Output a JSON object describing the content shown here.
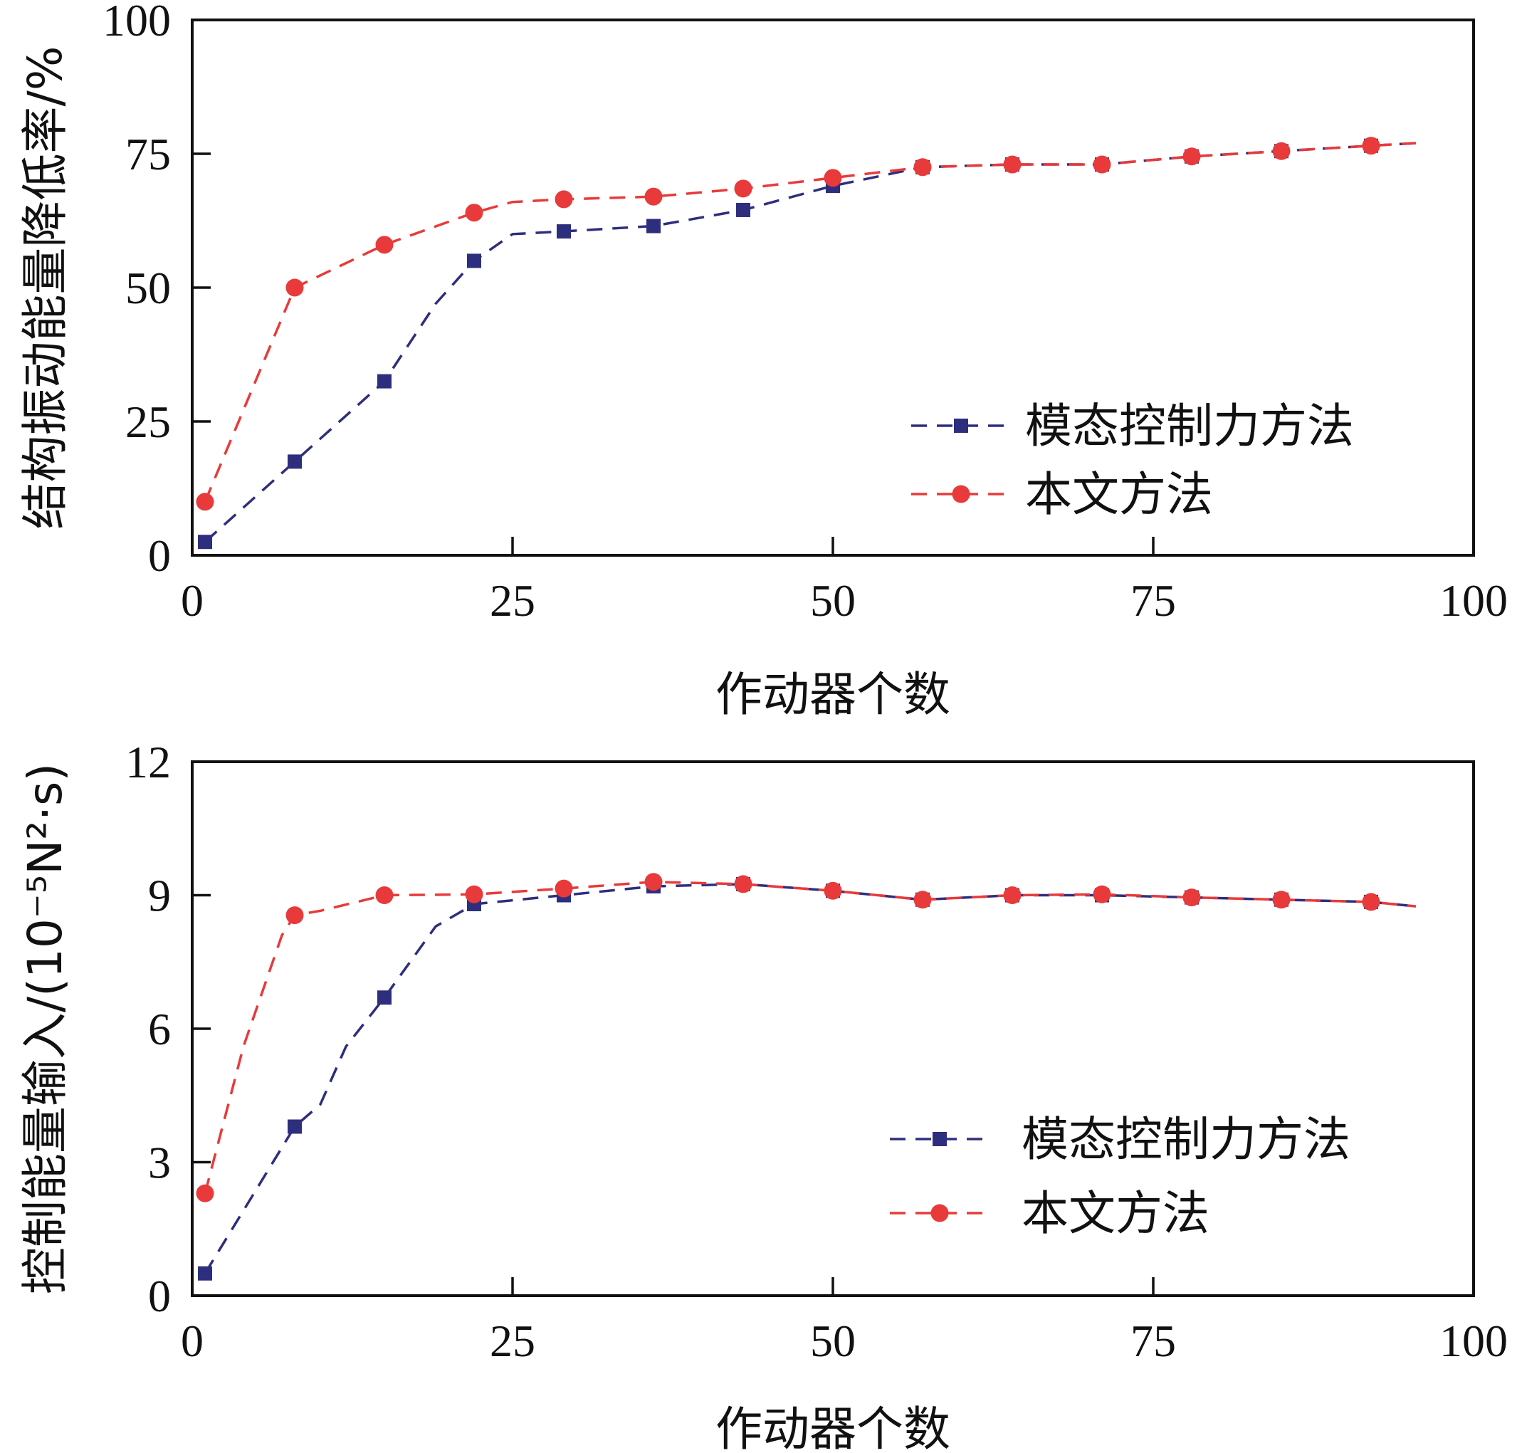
{
  "chart_data": [
    {
      "type": "line",
      "xlabel": "作动器个数",
      "ylabel": "结构振动能量降低率/%",
      "xlim": [
        0,
        100
      ],
      "ylim": [
        0,
        100
      ],
      "xticks": [
        "0",
        "25",
        "50",
        "75",
        "100"
      ],
      "yticks": [
        "0",
        "25",
        "50",
        "75",
        "100"
      ],
      "grid": false,
      "legend_position": "lower-right",
      "series": [
        {
          "name": "模态控制力方法",
          "color": "#2e2e7e",
          "marker": "square",
          "x": [
            1,
            8,
            15,
            22,
            29,
            36,
            43,
            50,
            57,
            64,
            71,
            78,
            85,
            92
          ],
          "y": [
            2.5,
            17.5,
            32.5,
            55,
            60.5,
            61.5,
            64.5,
            69,
            72.5,
            73,
            73,
            74.5,
            75.5,
            76.5
          ],
          "line_x": [
            1,
            8,
            15,
            19,
            22,
            25,
            29,
            36,
            43,
            50,
            57,
            64,
            71,
            78,
            85,
            92,
            95.5
          ],
          "line_y": [
            2.5,
            17.5,
            32.5,
            47,
            55,
            60,
            60.5,
            61.5,
            64.5,
            69,
            72.5,
            73,
            73,
            74.5,
            75.5,
            76.5,
            77
          ]
        },
        {
          "name": "本文方法",
          "color": "#e83a3a",
          "marker": "circle",
          "x": [
            1,
            8,
            15,
            22,
            29,
            36,
            43,
            50,
            57,
            64,
            71,
            78,
            85,
            92
          ],
          "y": [
            10,
            50,
            58,
            64,
            66.5,
            67,
            68.5,
            70.5,
            72.5,
            73,
            73,
            74.5,
            75.5,
            76.5
          ],
          "line_x": [
            1,
            8,
            15,
            22,
            25,
            29,
            36,
            43,
            50,
            57,
            64,
            71,
            78,
            85,
            92,
            95.5
          ],
          "line_y": [
            10,
            50,
            58,
            64,
            66,
            66.5,
            67,
            68.5,
            70.5,
            72.5,
            73,
            73,
            74.5,
            75.5,
            76.5,
            77
          ]
        }
      ]
    },
    {
      "type": "line",
      "xlabel": "作动器个数",
      "ylabel": "控制能量输入/(10⁻⁵N²·s)",
      "xlim": [
        0,
        100
      ],
      "ylim": [
        0,
        12
      ],
      "xticks": [
        "0",
        "25",
        "50",
        "75",
        "100"
      ],
      "yticks": [
        "0",
        "3",
        "6",
        "9",
        "12"
      ],
      "grid": false,
      "legend_position": "lower-right",
      "series": [
        {
          "name": "模态控制力方法",
          "color": "#2e2e7e",
          "marker": "square",
          "x": [
            1,
            8,
            15,
            22,
            29,
            36,
            43,
            50,
            57,
            64,
            71,
            78,
            85,
            92
          ],
          "y": [
            0.5,
            3.8,
            6.7,
            8.8,
            9.0,
            9.2,
            9.25,
            9.1,
            8.9,
            9.0,
            9.0,
            8.95,
            8.9,
            8.85
          ],
          "line_x": [
            1,
            8,
            10,
            12,
            15,
            19,
            22,
            29,
            36,
            43,
            50,
            57,
            64,
            71,
            78,
            85,
            92,
            95.5
          ],
          "line_y": [
            0.5,
            3.8,
            4.3,
            5.6,
            6.7,
            8.3,
            8.8,
            9.0,
            9.2,
            9.25,
            9.1,
            8.9,
            9.0,
            9.0,
            8.95,
            8.9,
            8.85,
            8.75
          ]
        },
        {
          "name": "本文方法",
          "color": "#e83a3a",
          "marker": "circle",
          "x": [
            1,
            8,
            15,
            22,
            29,
            36,
            43,
            50,
            57,
            64,
            71,
            78,
            85,
            92
          ],
          "y": [
            2.3,
            8.55,
            9.0,
            9.02,
            9.15,
            9.3,
            9.25,
            9.1,
            8.9,
            9.0,
            9.02,
            8.95,
            8.9,
            8.85
          ],
          "line_x": [
            1,
            4,
            7,
            8,
            10,
            15,
            22,
            29,
            36,
            43,
            50,
            57,
            64,
            71,
            78,
            85,
            92,
            95.5
          ],
          "line_y": [
            2.3,
            5.6,
            8.1,
            8.55,
            8.65,
            9.0,
            9.02,
            9.15,
            9.3,
            9.25,
            9.1,
            8.9,
            9.0,
            9.02,
            8.95,
            8.9,
            8.85,
            8.75
          ]
        }
      ]
    }
  ]
}
